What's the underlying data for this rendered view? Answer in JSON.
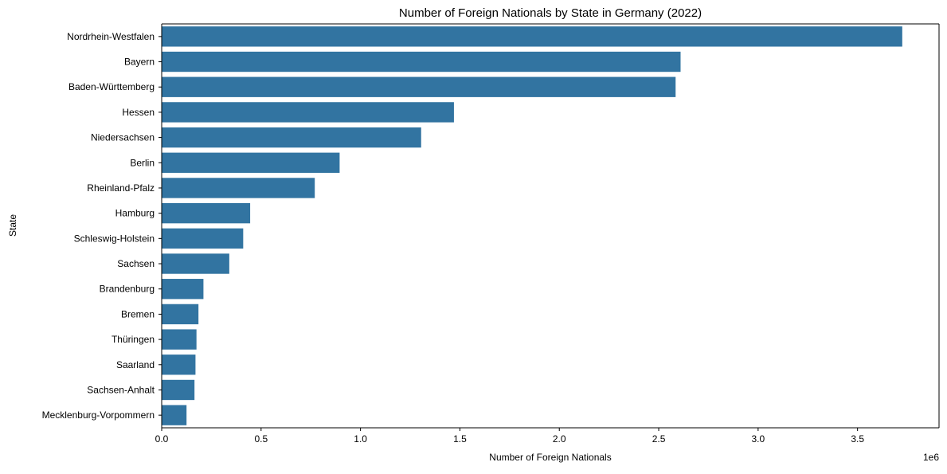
{
  "chart_data": {
    "type": "bar",
    "orientation": "horizontal",
    "title": "Number of Foreign Nationals by State in Germany (2022)",
    "xlabel": "Number of Foreign Nationals",
    "ylabel": "State",
    "x_offset_label": "1e6",
    "x_ticks": [
      0,
      500000,
      1000000,
      1500000,
      2000000,
      2500000,
      3000000,
      3500000
    ],
    "x_tick_labels": [
      "0.0",
      "0.5",
      "1.0",
      "1.5",
      "2.0",
      "2.5",
      "3.0",
      "3.5"
    ],
    "xlim": [
      0,
      3910000
    ],
    "categories": [
      "Nordrhein-Westfalen",
      "Bayern",
      "Baden-Württemberg",
      "Hessen",
      "Niedersachsen",
      "Berlin",
      "Rheinland-Pfalz",
      "Hamburg",
      "Schleswig-Holstein",
      "Sachsen",
      "Brandenburg",
      "Bremen",
      "Thüringen",
      "Saarland",
      "Sachsen-Anhalt",
      "Mecklenburg-Vorpommern"
    ],
    "values": [
      3725000,
      2610000,
      2585000,
      1470000,
      1305000,
      895000,
      770000,
      445000,
      410000,
      340000,
      210000,
      185000,
      175000,
      170000,
      165000,
      125000
    ],
    "bar_color": "#3274a1",
    "grid": false,
    "legend": "none"
  }
}
